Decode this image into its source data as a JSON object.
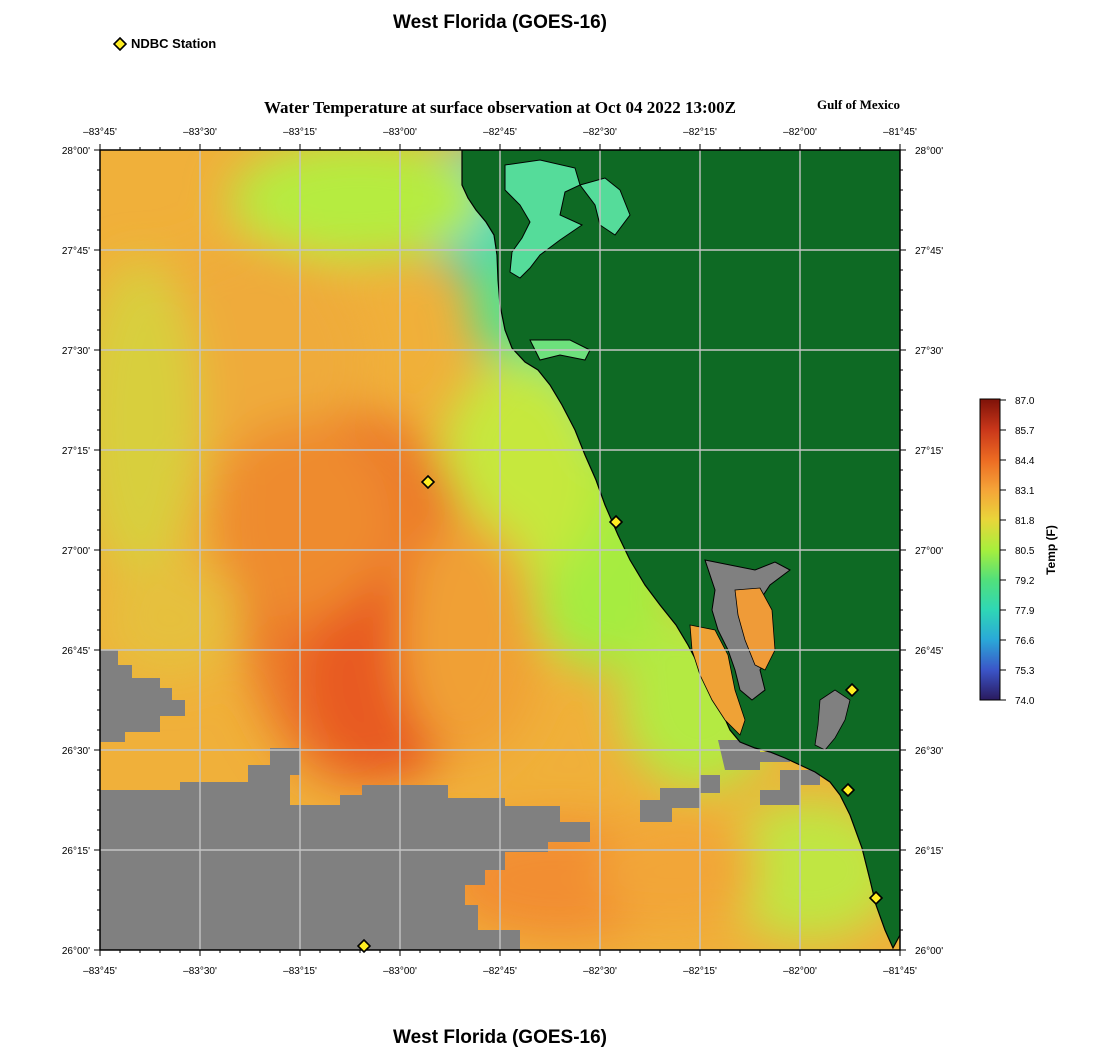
{
  "page": {
    "title_top": "West Florida (GOES-16)",
    "title_bottom": "West Florida (GOES-16)"
  },
  "legend": {
    "label": "NDBC Station"
  },
  "map": {
    "title": "Water Temperature at surface observation at Oct 04 2022 13:00Z",
    "region_label": "Gulf of Mexico",
    "x_ticks": [
      "–83°45'",
      "–83°30'",
      "–83°15'",
      "–83°00'",
      "–82°45'",
      "–82°30'",
      "–82°15'",
      "–82°00'",
      "–81°45'"
    ],
    "y_ticks": [
      "28°00'",
      "27°45'",
      "27°30'",
      "27°15'",
      "27°00'",
      "26°45'",
      "26°30'",
      "26°15'",
      "26°00'"
    ],
    "lon_range": [
      -83.75,
      -81.75
    ],
    "lat_range": [
      26.0,
      28.0
    ],
    "land_color": "#0e6a24",
    "nodata_color": "#808080",
    "stations": [
      {
        "lon": -82.93,
        "lat": 27.17
      },
      {
        "lon": -82.46,
        "lat": 27.07
      },
      {
        "lon": -83.09,
        "lat": 26.01
      },
      {
        "lon": -81.87,
        "lat": 26.65
      },
      {
        "lon": -81.88,
        "lat": 26.4
      },
      {
        "lon": -81.81,
        "lat": 26.13
      }
    ]
  },
  "colorbar": {
    "label": "Temp (F)",
    "ticks": [
      "87.0",
      "85.7",
      "84.4",
      "83.1",
      "81.8",
      "80.5",
      "79.2",
      "77.9",
      "76.6",
      "75.3",
      "74.0"
    ],
    "range": [
      74.0,
      87.0
    ],
    "colors": [
      "#2a1a5e",
      "#3b55c8",
      "#2aa8d8",
      "#2fd7b5",
      "#52e07a",
      "#a8ef3c",
      "#e9d53a",
      "#f5a338",
      "#ec6a22",
      "#c8361a",
      "#7e1208"
    ]
  }
}
